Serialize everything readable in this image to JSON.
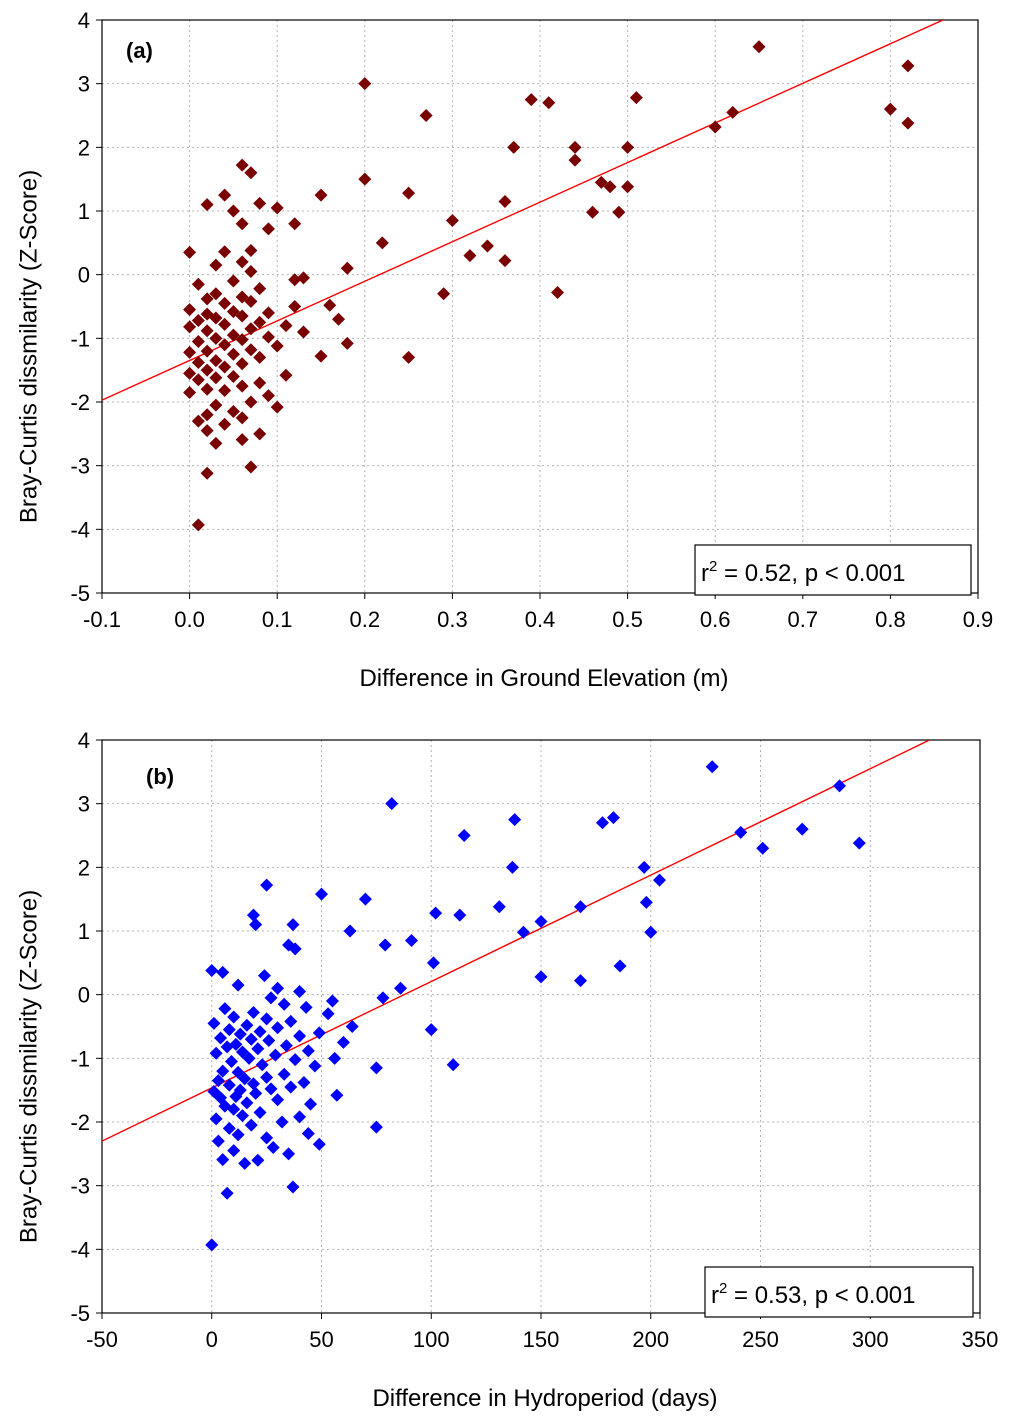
{
  "chart_data": [
    {
      "type": "scatter",
      "panel_label": "(a)",
      "xlabel": "Difference in Ground Elevation (m)",
      "ylabel": "Bray-Curtis dissmilarity (Z-Score)",
      "xlim": [
        -0.1,
        0.9
      ],
      "ylim": [
        -5,
        4
      ],
      "xticks": [
        "-0.1",
        "0.0",
        "0.1",
        "0.2",
        "0.3",
        "0.4",
        "0.5",
        "0.6",
        "0.7",
        "0.8",
        "0.9"
      ],
      "yticks": [
        "4",
        "3",
        "2",
        "1",
        "0",
        "-1",
        "-2",
        "-3",
        "-4",
        "-5"
      ],
      "grid": true,
      "marker": "diamond",
      "color": "#7a0000",
      "line_color": "#ff0000",
      "fit_line": {
        "x": [
          -0.1,
          0.86
        ],
        "y": [
          -1.97,
          4.0
        ]
      },
      "stat": {
        "r2_prefix": "r",
        "r2_sup": "2",
        "r2_rest": " = 0.52,  p < 0.001"
      },
      "points": [
        [
          0.01,
          -3.93
        ],
        [
          0.02,
          -3.12
        ],
        [
          0.07,
          -3.02
        ],
        [
          0.03,
          -2.65
        ],
        [
          0.06,
          -2.59
        ],
        [
          0.08,
          -2.5
        ],
        [
          0.02,
          -2.45
        ],
        [
          0.04,
          -2.35
        ],
        [
          0.01,
          -2.3
        ],
        [
          0.06,
          -2.25
        ],
        [
          0.02,
          -2.2
        ],
        [
          0.05,
          -2.15
        ],
        [
          0.1,
          -2.08
        ],
        [
          0.03,
          -2.05
        ],
        [
          0.07,
          -2.0
        ],
        [
          0.09,
          -1.9
        ],
        [
          0.0,
          -1.85
        ],
        [
          0.04,
          -1.82
        ],
        [
          0.02,
          -1.8
        ],
        [
          0.06,
          -1.75
        ],
        [
          0.08,
          -1.7
        ],
        [
          0.01,
          -1.65
        ],
        [
          0.03,
          -1.62
        ],
        [
          0.05,
          -1.6
        ],
        [
          0.11,
          -1.58
        ],
        [
          0.0,
          -1.55
        ],
        [
          0.02,
          -1.5
        ],
        [
          0.04,
          -1.45
        ],
        [
          0.06,
          -1.4
        ],
        [
          0.01,
          -1.38
        ],
        [
          0.03,
          -1.35
        ],
        [
          0.08,
          -1.3
        ],
        [
          0.15,
          -1.28
        ],
        [
          0.05,
          -1.25
        ],
        [
          0.0,
          -1.22
        ],
        [
          0.02,
          -1.2
        ],
        [
          0.07,
          -1.18
        ],
        [
          0.1,
          -1.12
        ],
        [
          0.04,
          -1.1
        ],
        [
          0.18,
          -1.08
        ],
        [
          0.01,
          -1.05
        ],
        [
          0.06,
          -1.02
        ],
        [
          0.03,
          -1.0
        ],
        [
          0.09,
          -0.98
        ],
        [
          0.05,
          -0.95
        ],
        [
          0.13,
          -0.9
        ],
        [
          0.02,
          -0.88
        ],
        [
          0.07,
          -0.85
        ],
        [
          0.0,
          -0.82
        ],
        [
          0.11,
          -0.8
        ],
        [
          0.04,
          -0.78
        ],
        [
          0.08,
          -0.75
        ],
        [
          0.01,
          -0.72
        ],
        [
          0.17,
          -0.7
        ],
        [
          0.03,
          -0.68
        ],
        [
          0.06,
          -0.65
        ],
        [
          0.02,
          -0.62
        ],
        [
          0.09,
          -0.6
        ],
        [
          0.05,
          -0.58
        ],
        [
          0.0,
          -0.55
        ],
        [
          0.12,
          -0.5
        ],
        [
          0.16,
          -0.48
        ],
        [
          0.04,
          -0.45
        ],
        [
          0.07,
          -0.42
        ],
        [
          0.02,
          -0.38
        ],
        [
          0.06,
          -0.35
        ],
        [
          0.03,
          -0.3
        ],
        [
          0.08,
          -0.22
        ],
        [
          0.01,
          -0.15
        ],
        [
          0.05,
          -0.1
        ],
        [
          0.12,
          -0.08
        ],
        [
          0.13,
          -0.05
        ],
        [
          0.07,
          0.05
        ],
        [
          0.03,
          0.15
        ],
        [
          0.06,
          0.2
        ],
        [
          0.18,
          0.1
        ],
        [
          0.0,
          0.35
        ],
        [
          0.04,
          0.36
        ],
        [
          0.07,
          0.38
        ],
        [
          0.09,
          0.72
        ],
        [
          0.06,
          0.8
        ],
        [
          0.12,
          0.8
        ],
        [
          0.1,
          1.05
        ],
        [
          0.08,
          1.12
        ],
        [
          0.05,
          1.0
        ],
        [
          0.02,
          1.1
        ],
        [
          0.04,
          1.25
        ],
        [
          0.07,
          1.6
        ],
        [
          0.06,
          1.72
        ],
        [
          0.15,
          1.25
        ],
        [
          0.22,
          0.5
        ],
        [
          0.2,
          1.5
        ],
        [
          0.25,
          1.28
        ],
        [
          0.2,
          3.0
        ],
        [
          0.27,
          2.5
        ],
        [
          0.25,
          -1.3
        ],
        [
          0.3,
          0.85
        ],
        [
          0.29,
          -0.3
        ],
        [
          0.32,
          0.3
        ],
        [
          0.34,
          0.45
        ],
        [
          0.36,
          0.22
        ],
        [
          0.36,
          1.15
        ],
        [
          0.37,
          2.0
        ],
        [
          0.39,
          2.75
        ],
        [
          0.41,
          2.7
        ],
        [
          0.42,
          -0.28
        ],
        [
          0.44,
          1.8
        ],
        [
          0.44,
          2.0
        ],
        [
          0.46,
          0.98
        ],
        [
          0.47,
          1.45
        ],
        [
          0.48,
          1.38
        ],
        [
          0.49,
          0.98
        ],
        [
          0.5,
          1.38
        ],
        [
          0.5,
          2.0
        ],
        [
          0.51,
          2.78
        ],
        [
          0.6,
          2.32
        ],
        [
          0.62,
          2.55
        ],
        [
          0.65,
          3.58
        ],
        [
          0.8,
          2.6
        ],
        [
          0.82,
          2.38
        ],
        [
          0.82,
          3.28
        ]
      ]
    },
    {
      "type": "scatter",
      "panel_label": "(b)",
      "xlabel": "Difference in Hydroperiod (days)",
      "ylabel": "Bray-Curtis dissmilarity (Z-Score)",
      "xlim": [
        -50,
        350
      ],
      "ylim": [
        -5,
        4
      ],
      "xticks": [
        "-50",
        "0",
        "50",
        "100",
        "150",
        "200",
        "250",
        "300",
        "350"
      ],
      "yticks": [
        "4",
        "3",
        "2",
        "1",
        "0",
        "-1",
        "-2",
        "-3",
        "-4",
        "-5"
      ],
      "grid": true,
      "marker": "diamond",
      "color": "#0000ff",
      "line_color": "#ff0000",
      "fit_line": {
        "x": [
          -50,
          327
        ],
        "y": [
          -2.3,
          4.0
        ]
      },
      "stat": {
        "r2_prefix": "r",
        "r2_sup": "2",
        "r2_rest": " = 0.53, p < 0.001"
      },
      "points": [
        [
          0,
          -3.93
        ],
        [
          7,
          -3.12
        ],
        [
          37,
          -3.02
        ],
        [
          15,
          -2.65
        ],
        [
          5,
          -2.59
        ],
        [
          21,
          -2.6
        ],
        [
          35,
          -2.5
        ],
        [
          10,
          -2.45
        ],
        [
          28,
          -2.4
        ],
        [
          3,
          -2.3
        ],
        [
          49,
          -2.35
        ],
        [
          12,
          -2.2
        ],
        [
          25,
          -2.25
        ],
        [
          44,
          -2.18
        ],
        [
          75,
          -2.08
        ],
        [
          8,
          -2.1
        ],
        [
          18,
          -2.05
        ],
        [
          32,
          -2.0
        ],
        [
          2,
          -1.95
        ],
        [
          40,
          -1.92
        ],
        [
          14,
          -1.9
        ],
        [
          22,
          -1.85
        ],
        [
          10,
          -1.8
        ],
        [
          6,
          -1.75
        ],
        [
          45,
          -1.72
        ],
        [
          16,
          -1.7
        ],
        [
          30,
          -1.65
        ],
        [
          4,
          -1.62
        ],
        [
          11,
          -1.6
        ],
        [
          57,
          -1.58
        ],
        [
          20,
          -1.55
        ],
        [
          1,
          -1.52
        ],
        [
          13,
          -1.5
        ],
        [
          27,
          -1.48
        ],
        [
          36,
          -1.45
        ],
        [
          8,
          -1.42
        ],
        [
          19,
          -1.4
        ],
        [
          42,
          -1.38
        ],
        [
          3,
          -1.35
        ],
        [
          15,
          -1.32
        ],
        [
          25,
          -1.3
        ],
        [
          33,
          -1.25
        ],
        [
          12,
          -1.22
        ],
        [
          5,
          -1.2
        ],
        [
          75,
          -1.15
        ],
        [
          47,
          -1.12
        ],
        [
          23,
          -1.1
        ],
        [
          110,
          -1.1
        ],
        [
          9,
          -1.05
        ],
        [
          38,
          -1.02
        ],
        [
          17,
          -1.0
        ],
        [
          56,
          -1.0
        ],
        [
          29,
          -0.95
        ],
        [
          2,
          -0.92
        ],
        [
          14,
          -0.9
        ],
        [
          44,
          -0.88
        ],
        [
          21,
          -0.85
        ],
        [
          7,
          -0.82
        ],
        [
          34,
          -0.8
        ],
        [
          11,
          -0.78
        ],
        [
          60,
          -0.75
        ],
        [
          26,
          -0.72
        ],
        [
          18,
          -0.7
        ],
        [
          4,
          -0.68
        ],
        [
          40,
          -0.65
        ],
        [
          13,
          -0.62
        ],
        [
          49,
          -0.6
        ],
        [
          22,
          -0.58
        ],
        [
          8,
          -0.55
        ],
        [
          100,
          -0.55
        ],
        [
          30,
          -0.52
        ],
        [
          64,
          -0.5
        ],
        [
          16,
          -0.48
        ],
        [
          1,
          -0.45
        ],
        [
          36,
          -0.42
        ],
        [
          25,
          -0.38
        ],
        [
          10,
          -0.35
        ],
        [
          53,
          -0.3
        ],
        [
          19,
          -0.28
        ],
        [
          6,
          -0.22
        ],
        [
          43,
          -0.2
        ],
        [
          33,
          -0.15
        ],
        [
          55,
          -0.1
        ],
        [
          78,
          -0.05
        ],
        [
          27,
          -0.05
        ],
        [
          40,
          0.05
        ],
        [
          30,
          0.1
        ],
        [
          86,
          0.1
        ],
        [
          12,
          0.15
        ],
        [
          24,
          0.3
        ],
        [
          5,
          0.35
        ],
        [
          0,
          0.38
        ],
        [
          101,
          0.5
        ],
        [
          150,
          0.28
        ],
        [
          168,
          0.22
        ],
        [
          186,
          0.45
        ],
        [
          38,
          0.72
        ],
        [
          63,
          1.0
        ],
        [
          35,
          0.78
        ],
        [
          79,
          0.78
        ],
        [
          91,
          0.85
        ],
        [
          142,
          0.98
        ],
        [
          150,
          1.15
        ],
        [
          168,
          1.38
        ],
        [
          200,
          0.98
        ],
        [
          102,
          1.28
        ],
        [
          113,
          1.25
        ],
        [
          131,
          1.38
        ],
        [
          37,
          1.1
        ],
        [
          20,
          1.1
        ],
        [
          19,
          1.25
        ],
        [
          70,
          1.5
        ],
        [
          50,
          1.58
        ],
        [
          25,
          1.72
        ],
        [
          198,
          1.45
        ],
        [
          204,
          1.8
        ],
        [
          197,
          2.0
        ],
        [
          137,
          2.0
        ],
        [
          115,
          2.5
        ],
        [
          138,
          2.75
        ],
        [
          82,
          3.0
        ],
        [
          178,
          2.7
        ],
        [
          183,
          2.78
        ],
        [
          241,
          2.55
        ],
        [
          251,
          2.3
        ],
        [
          269,
          2.6
        ],
        [
          295,
          2.38
        ],
        [
          286,
          3.28
        ],
        [
          228,
          3.58
        ]
      ]
    }
  ]
}
